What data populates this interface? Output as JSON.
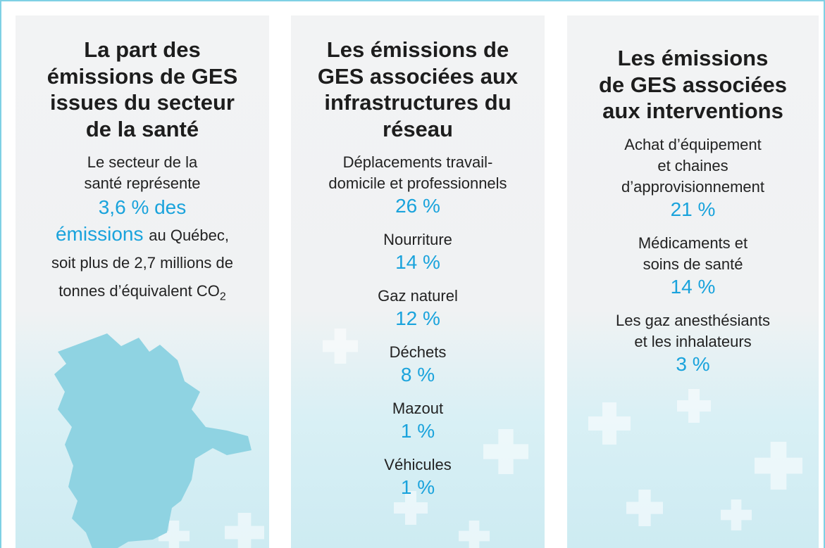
{
  "panels": [
    {
      "title_lines": [
        "La part des",
        "émissions de GES",
        "issues du secteur",
        "de la santé"
      ],
      "intro": {
        "lines_before": [
          "Le secteur de la",
          "santé représente"
        ],
        "highlight_lines": [
          "3,6 % des",
          "émissions"
        ],
        "after_highlight": "au Québec,",
        "lines_after": [
          "soit plus de 2,7 millions de",
          "tonnes d’équivalent CO"
        ],
        "subscript": "2"
      }
    },
    {
      "title_lines": [
        "Les émissions de",
        "GES associées aux",
        "infrastructures du",
        "réseau"
      ],
      "items": [
        {
          "label_lines": [
            "Déplacements travail-",
            "domicile et professionnels"
          ],
          "value": "26 %"
        },
        {
          "label_lines": [
            "Nourriture"
          ],
          "value": "14 %"
        },
        {
          "label_lines": [
            "Gaz naturel"
          ],
          "value": "12 %"
        },
        {
          "label_lines": [
            "Déchets"
          ],
          "value": "8 %"
        },
        {
          "label_lines": [
            "Mazout"
          ],
          "value": "1 %"
        },
        {
          "label_lines": [
            "Véhicules"
          ],
          "value": "1 %"
        }
      ]
    },
    {
      "title_lines": [
        "Les émissions",
        "de GES associées",
        "aux interventions"
      ],
      "items": [
        {
          "label_lines": [
            "Achat d’équipement",
            "et chaines",
            "d’approvisionnement"
          ],
          "value": "21 %"
        },
        {
          "label_lines": [
            "Médicaments et",
            "soins de santé"
          ],
          "value": "14 %"
        },
        {
          "label_lines": [
            "Les gaz anesthésiants",
            "et les inhalateurs"
          ],
          "value": "3 %"
        }
      ]
    }
  ]
}
